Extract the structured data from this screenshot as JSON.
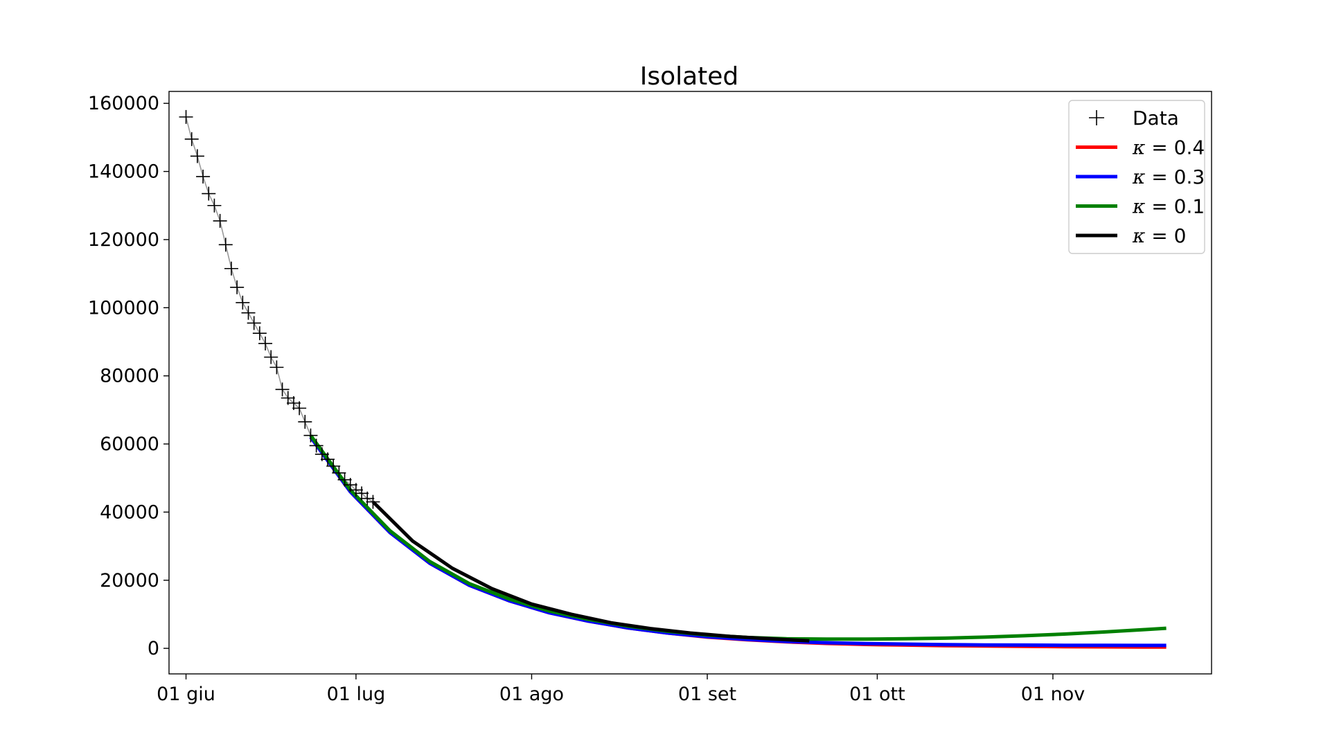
{
  "chart_data": {
    "type": "line",
    "title": "Isolated",
    "xlabel": "",
    "ylabel": "",
    "x_axis": {
      "type": "date",
      "range": [
        "2020-05-29",
        "2020-11-29"
      ],
      "ticks": [
        {
          "date": "2020-06-01",
          "label": "01 giu"
        },
        {
          "date": "2020-07-01",
          "label": "01 lug"
        },
        {
          "date": "2020-08-01",
          "label": "01 ago"
        },
        {
          "date": "2020-09-01",
          "label": "01 set"
        },
        {
          "date": "2020-10-01",
          "label": "01 ott"
        },
        {
          "date": "2020-11-01",
          "label": "01 nov"
        }
      ]
    },
    "y_axis": {
      "range": [
        -7500,
        163500
      ],
      "ticks": [
        {
          "value": 0,
          "label": "0"
        },
        {
          "value": 20000,
          "label": "20000"
        },
        {
          "value": 40000,
          "label": "40000"
        },
        {
          "value": 60000,
          "label": "60000"
        },
        {
          "value": 80000,
          "label": "80000"
        },
        {
          "value": 100000,
          "label": "100000"
        },
        {
          "value": 120000,
          "label": "120000"
        },
        {
          "value": 140000,
          "label": "140000"
        },
        {
          "value": 160000,
          "label": "160000"
        }
      ]
    },
    "grid": false,
    "legend": "top-right",
    "data_series": {
      "name": "Data",
      "marker": "+",
      "color": "#000000",
      "line_color": "#999999",
      "x": [
        "2020-06-01",
        "2020-06-02",
        "2020-06-03",
        "2020-06-04",
        "2020-06-05",
        "2020-06-06",
        "2020-06-07",
        "2020-06-08",
        "2020-06-09",
        "2020-06-10",
        "2020-06-11",
        "2020-06-12",
        "2020-06-13",
        "2020-06-14",
        "2020-06-15",
        "2020-06-16",
        "2020-06-17",
        "2020-06-18",
        "2020-06-19",
        "2020-06-20",
        "2020-06-21",
        "2020-06-22",
        "2020-06-23",
        "2020-06-24",
        "2020-06-25",
        "2020-06-26",
        "2020-06-27",
        "2020-06-28",
        "2020-06-29",
        "2020-06-30",
        "2020-07-01",
        "2020-07-02",
        "2020-07-03",
        "2020-07-04"
      ],
      "y": [
        156000,
        149500,
        144500,
        138500,
        133500,
        130000,
        125500,
        118500,
        111500,
        106000,
        101500,
        98500,
        95500,
        92500,
        89500,
        85500,
        82500,
        76000,
        73500,
        72000,
        70500,
        66500,
        62500,
        59500,
        57000,
        55500,
        53500,
        51500,
        49500,
        48000,
        46500,
        45500,
        44000,
        43000
      ]
    },
    "series": [
      {
        "name": "κ = 0.4",
        "color": "#ff0000",
        "x": [
          "2020-06-23",
          "2020-06-30",
          "2020-07-07",
          "2020-07-14",
          "2020-07-21",
          "2020-07-28",
          "2020-08-04",
          "2020-08-11",
          "2020-08-18",
          "2020-08-25",
          "2020-09-01",
          "2020-09-08",
          "2020-09-15",
          "2020-09-22",
          "2020-09-29",
          "2020-10-06",
          "2020-10-13",
          "2020-10-20",
          "2020-10-27",
          "2020-11-03",
          "2020-11-10",
          "2020-11-17",
          "2020-11-21"
        ],
        "y": [
          62000,
          46000,
          34000,
          25000,
          18500,
          14000,
          10500,
          8000,
          6000,
          4500,
          3300,
          2500,
          1900,
          1450,
          1150,
          950,
          800,
          680,
          580,
          500,
          440,
          390,
          360
        ]
      },
      {
        "name": "κ = 0.3",
        "color": "#0000ff",
        "x": [
          "2020-06-23",
          "2020-06-30",
          "2020-07-07",
          "2020-07-14",
          "2020-07-21",
          "2020-07-28",
          "2020-08-04",
          "2020-08-11",
          "2020-08-18",
          "2020-08-25",
          "2020-09-01",
          "2020-09-08",
          "2020-09-15",
          "2020-09-22",
          "2020-09-29",
          "2020-10-06",
          "2020-10-13",
          "2020-10-20",
          "2020-10-27",
          "2020-11-03",
          "2020-11-10",
          "2020-11-17",
          "2020-11-21"
        ],
        "y": [
          62000,
          46000,
          34000,
          25000,
          18500,
          14000,
          10500,
          8000,
          6000,
          4500,
          3400,
          2600,
          2000,
          1650,
          1400,
          1250,
          1100,
          1000,
          950,
          900,
          880,
          860,
          850
        ]
      },
      {
        "name": "κ = 0.1",
        "color": "#008000",
        "x": [
          "2020-06-23",
          "2020-06-30",
          "2020-07-07",
          "2020-07-14",
          "2020-07-21",
          "2020-07-28",
          "2020-08-04",
          "2020-08-11",
          "2020-08-18",
          "2020-08-25",
          "2020-09-01",
          "2020-09-08",
          "2020-09-15",
          "2020-09-22",
          "2020-09-29",
          "2020-10-06",
          "2020-10-13",
          "2020-10-20",
          "2020-10-27",
          "2020-11-03",
          "2020-11-10",
          "2020-11-17",
          "2020-11-21"
        ],
        "y": [
          62500,
          46500,
          34500,
          25500,
          19000,
          14500,
          11000,
          8500,
          6500,
          5000,
          3900,
          3200,
          2800,
          2700,
          2700,
          2800,
          3000,
          3300,
          3700,
          4200,
          4800,
          5500,
          5900
        ]
      },
      {
        "name": "κ = 0",
        "color": "#000000",
        "x": [
          "2020-07-04",
          "2020-07-11",
          "2020-07-18",
          "2020-07-25",
          "2020-08-01",
          "2020-08-08",
          "2020-08-15",
          "2020-08-22",
          "2020-08-29",
          "2020-09-05",
          "2020-09-12",
          "2020-09-19"
        ],
        "y": [
          43000,
          31500,
          23500,
          17500,
          13000,
          10000,
          7500,
          5800,
          4500,
          3500,
          2800,
          2200
        ]
      }
    ]
  }
}
